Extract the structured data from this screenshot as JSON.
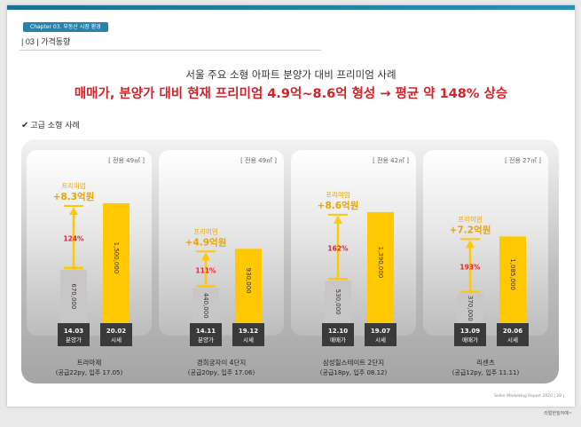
{
  "header": {
    "chapter": "Chapter 03. 부동산 시장 환경",
    "section": "| 03 | 가격동향"
  },
  "headings": {
    "line1": "서울 주요 소형 아파트 분양가 대비 프리미엄 사례",
    "line2": "매매가, 분양가 대비 현재 프리미엄 4.9억~8.6억 형성 → 평균 약 148% 상승"
  },
  "case_label": "고급 소형 사례",
  "premium_label": "프리미엄",
  "footer": "Soller Marketing Report 2020 | 29 |",
  "watermark": "리얼한밀어예~",
  "colors": {
    "before": "#c8c6c6",
    "after": "#ffc800",
    "accent": "#ffc800",
    "pct": "#e8232b",
    "heading": "#d61f26",
    "brand": "#2584ad"
  },
  "chart_data": {
    "type": "bar",
    "panels": [
      {
        "area": "[ 전용 49㎡ ]",
        "premium": "+8.3억원",
        "pct": "124%",
        "bars": [
          {
            "value": 670000,
            "label": "670,000",
            "date": "14.03",
            "kind": "분양가"
          },
          {
            "value": 1500000,
            "label": "1,500,000",
            "date": "20.02",
            "kind": "시세"
          }
        ],
        "name": "트라마제",
        "sub": "(공급22py, 입주 17.05)"
      },
      {
        "area": "[ 전용 49㎡ ]",
        "premium": "+4.9억원",
        "pct": "111%",
        "bars": [
          {
            "value": 440000,
            "label": "440,000",
            "date": "14.11",
            "kind": "분양가"
          },
          {
            "value": 930000,
            "label": "930,000",
            "date": "19.12",
            "kind": "시세"
          }
        ],
        "name": "경희궁자이 4단지",
        "sub": "(공급20py, 입주 17.06)"
      },
      {
        "area": "[ 전용 42㎡ ]",
        "premium": "+8.6억원",
        "pct": "162%",
        "bars": [
          {
            "value": 530000,
            "label": "530,000",
            "date": "12.10",
            "kind": "매매가"
          },
          {
            "value": 1390000,
            "label": "1,390,000",
            "date": "19.07",
            "kind": "시세"
          }
        ],
        "name": "삼성힐스테이트 2단지",
        "sub": "(공급18py, 입주 08.12)"
      },
      {
        "area": "[ 전용 27㎡ ]",
        "premium": "+7.2억원",
        "pct": "193%",
        "bars": [
          {
            "value": 370000,
            "label": "370,000",
            "date": "13.09",
            "kind": "매매가"
          },
          {
            "value": 1085000,
            "label": "1,085,000",
            "date": "20.06",
            "kind": "시세"
          }
        ],
        "name": "리센츠",
        "sub": "(공급12py, 입주 11.11)"
      }
    ],
    "ylim": [
      0,
      1500000
    ]
  }
}
